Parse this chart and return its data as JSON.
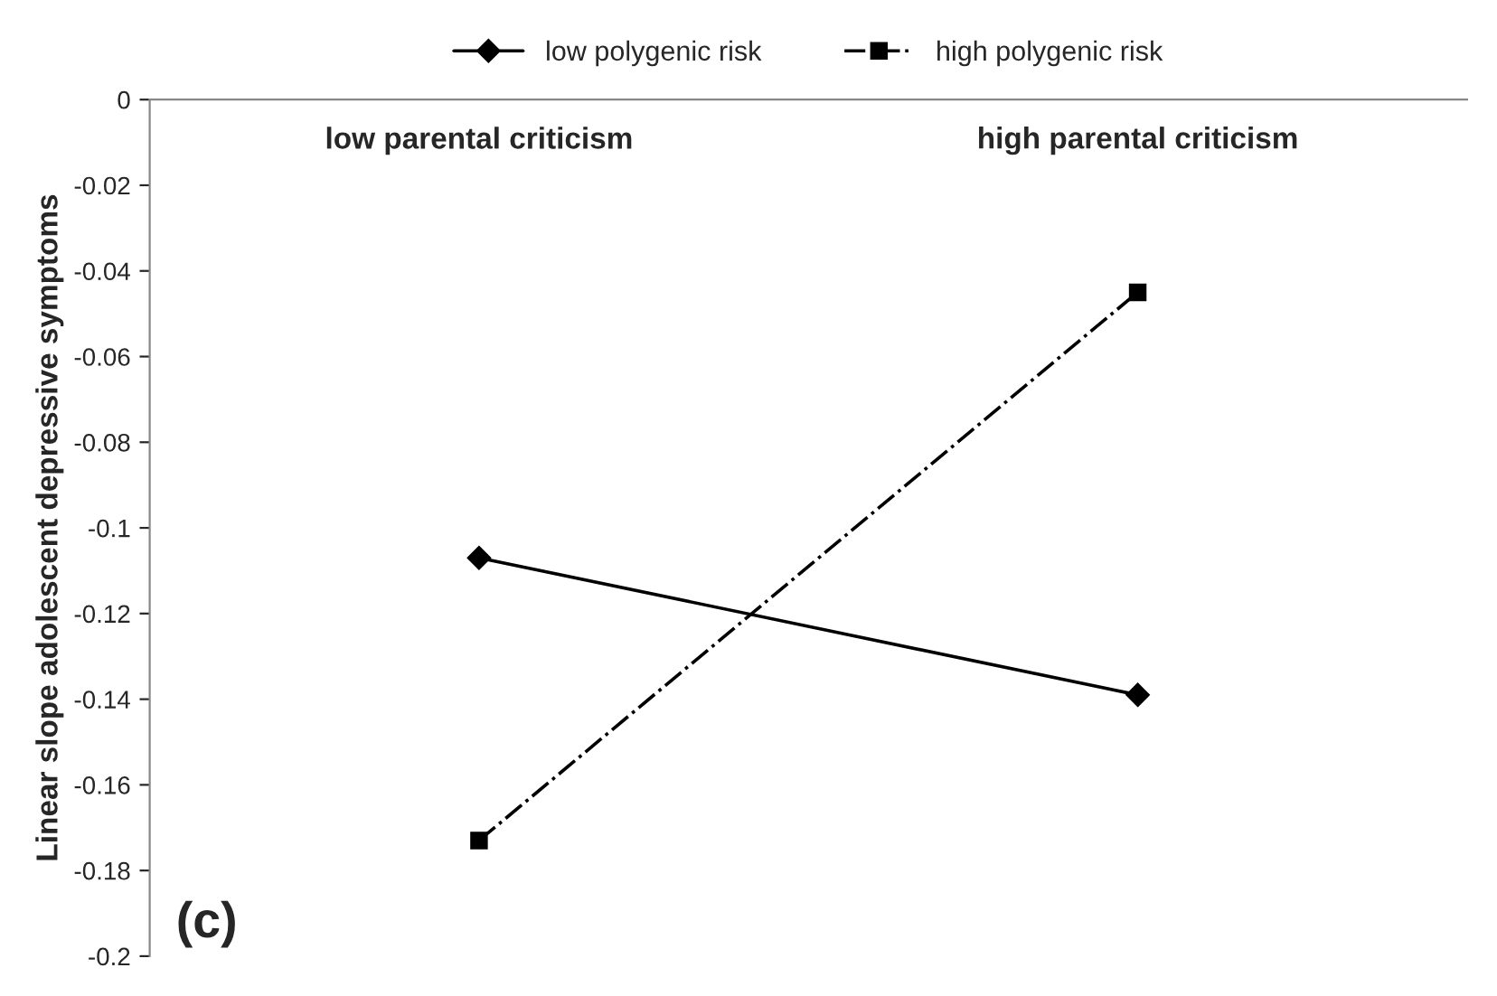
{
  "chart_data": {
    "type": "line",
    "ylabel": "Linear slope adolescent depressive symptoms",
    "categories": [
      "low parental criticism",
      "high parental criticism"
    ],
    "series": [
      {
        "name": "low polygenic risk",
        "color": "#000000",
        "values": [
          -0.107,
          -0.139
        ],
        "marker": "diamond",
        "line_style": "solid"
      },
      {
        "name": "high polygenic risk",
        "color": "#000000",
        "values": [
          -0.173,
          -0.045
        ],
        "marker": "square",
        "line_style": "dashdot"
      }
    ],
    "ylim": [
      -0.2,
      0
    ],
    "yticks": [
      0,
      -0.02,
      -0.04,
      -0.06,
      -0.08,
      -0.1,
      -0.12,
      -0.14,
      -0.16,
      -0.18,
      -0.2
    ],
    "grid": false,
    "legend": "top",
    "annotations": [
      "(c)"
    ]
  }
}
